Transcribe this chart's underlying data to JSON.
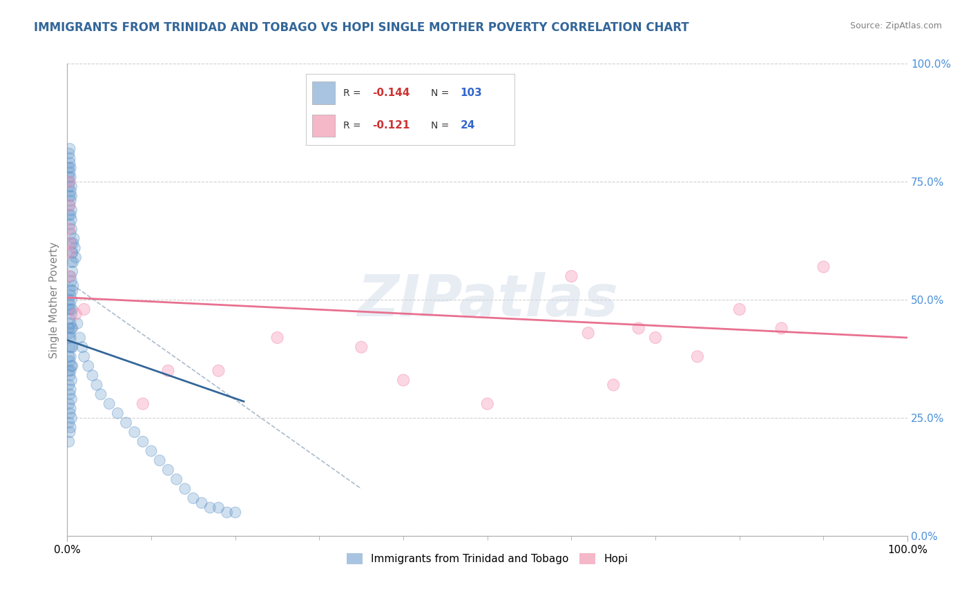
{
  "title": "IMMIGRANTS FROM TRINIDAD AND TOBAGO VS HOPI SINGLE MOTHER POVERTY CORRELATION CHART",
  "source": "Source: ZipAtlas.com",
  "ylabel": "Single Mother Poverty",
  "xlim": [
    0.0,
    1.0
  ],
  "ylim": [
    0.0,
    1.0
  ],
  "xtick_labels": [
    "0.0%",
    "100.0%"
  ],
  "ytick_labels": [
    "0.0%",
    "25.0%",
    "50.0%",
    "75.0%",
    "100.0%"
  ],
  "ytick_positions": [
    0.0,
    0.25,
    0.5,
    0.75,
    1.0
  ],
  "legend_entries": [
    {
      "label": "Immigrants from Trinidad and Tobago",
      "color": "#a8c4e0"
    },
    {
      "label": "Hopi",
      "color": "#f4b8c8"
    }
  ],
  "inset_blue_R": "-0.144",
  "inset_blue_N": "103",
  "inset_pink_R": "-0.121",
  "inset_pink_N": "24",
  "blue_color": "#6699cc",
  "pink_color": "#f48fb1",
  "blue_line_color": "#336699",
  "pink_line_color": "#e87090",
  "dashed_line_color": "#aabbcc",
  "watermark": "ZIPatlas",
  "title_color": "#336699",
  "title_fontsize": 12,
  "blue_scatter_x": [
    0.002,
    0.002,
    0.002,
    0.002,
    0.002,
    0.002,
    0.002,
    0.002,
    0.002,
    0.002,
    0.003,
    0.003,
    0.003,
    0.003,
    0.003,
    0.003,
    0.003,
    0.003,
    0.003,
    0.003,
    0.004,
    0.004,
    0.004,
    0.004,
    0.004,
    0.004,
    0.004,
    0.004,
    0.004,
    0.004,
    0.005,
    0.005,
    0.005,
    0.005,
    0.005,
    0.005,
    0.005,
    0.005,
    0.005,
    0.005,
    0.006,
    0.006,
    0.006,
    0.006,
    0.006,
    0.006,
    0.006,
    0.007,
    0.007,
    0.007,
    0.008,
    0.009,
    0.01,
    0.012,
    0.015,
    0.018,
    0.02,
    0.025,
    0.03,
    0.035,
    0.04,
    0.05,
    0.06,
    0.07,
    0.08,
    0.09,
    0.1,
    0.11,
    0.12,
    0.13,
    0.14,
    0.15,
    0.16,
    0.17,
    0.18,
    0.19,
    0.2,
    0.002,
    0.003,
    0.004,
    0.005,
    0.006,
    0.003,
    0.004,
    0.005,
    0.003,
    0.002,
    0.004,
    0.005,
    0.003,
    0.002,
    0.004,
    0.003,
    0.005,
    0.002,
    0.003,
    0.004,
    0.005,
    0.003,
    0.002,
    0.004,
    0.003,
    0.005
  ],
  "blue_scatter_y": [
    0.5,
    0.48,
    0.44,
    0.42,
    0.38,
    0.35,
    0.32,
    0.28,
    0.24,
    0.2,
    0.52,
    0.49,
    0.46,
    0.43,
    0.4,
    0.37,
    0.34,
    0.3,
    0.26,
    0.22,
    0.55,
    0.51,
    0.48,
    0.45,
    0.42,
    0.38,
    0.35,
    0.31,
    0.27,
    0.23,
    0.58,
    0.54,
    0.5,
    0.47,
    0.44,
    0.4,
    0.36,
    0.33,
    0.29,
    0.25,
    0.6,
    0.56,
    0.52,
    0.48,
    0.44,
    0.4,
    0.36,
    0.62,
    0.58,
    0.53,
    0.63,
    0.61,
    0.59,
    0.45,
    0.42,
    0.4,
    0.38,
    0.36,
    0.34,
    0.32,
    0.3,
    0.28,
    0.26,
    0.24,
    0.22,
    0.2,
    0.18,
    0.16,
    0.14,
    0.12,
    0.1,
    0.08,
    0.07,
    0.06,
    0.06,
    0.05,
    0.05,
    0.68,
    0.66,
    0.64,
    0.62,
    0.6,
    0.7,
    0.68,
    0.65,
    0.72,
    0.74,
    0.71,
    0.67,
    0.75,
    0.76,
    0.73,
    0.77,
    0.69,
    0.78,
    0.79,
    0.76,
    0.72,
    0.8,
    0.81,
    0.78,
    0.82,
    0.74
  ],
  "pink_scatter_x": [
    0.002,
    0.002,
    0.002,
    0.002,
    0.003,
    0.01,
    0.02,
    0.09,
    0.18,
    0.25,
    0.35,
    0.4,
    0.5,
    0.6,
    0.62,
    0.65,
    0.68,
    0.7,
    0.75,
    0.8,
    0.85,
    0.9,
    0.002,
    0.12
  ],
  "pink_scatter_y": [
    0.75,
    0.7,
    0.65,
    0.6,
    0.62,
    0.47,
    0.48,
    0.28,
    0.35,
    0.42,
    0.4,
    0.33,
    0.28,
    0.55,
    0.43,
    0.32,
    0.44,
    0.42,
    0.38,
    0.48,
    0.44,
    0.57,
    0.55,
    0.35
  ],
  "blue_trend_x": [
    0.0,
    0.21
  ],
  "blue_trend_y": [
    0.415,
    0.285
  ],
  "pink_trend_x": [
    0.0,
    1.0
  ],
  "pink_trend_y": [
    0.505,
    0.42
  ],
  "dashed_trend_x": [
    0.0,
    0.35
  ],
  "dashed_trend_y": [
    0.54,
    0.1
  ]
}
